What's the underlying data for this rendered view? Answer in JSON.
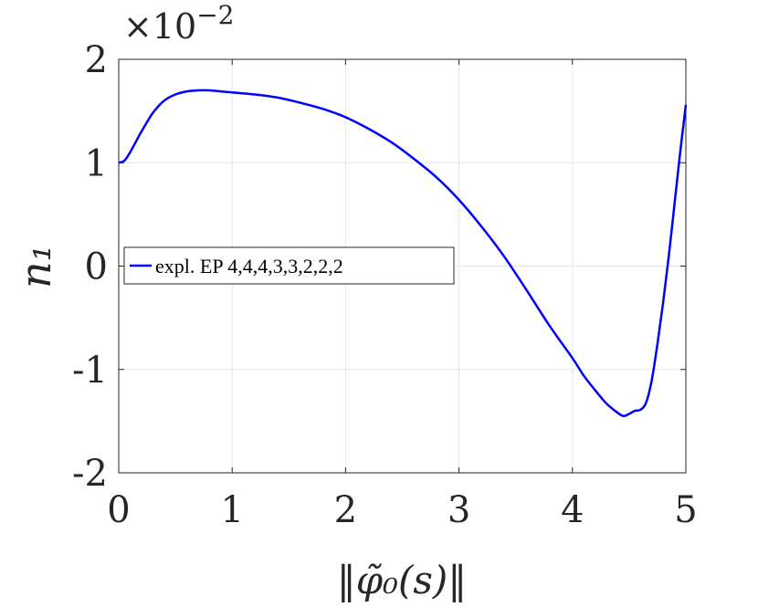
{
  "chart_data": {
    "type": "line",
    "x_exponent_label": "",
    "y_multiplier": "×10",
    "y_multiplier_exp": "−2",
    "xlabel": "‖φ̃₀(s)‖",
    "ylabel": "n₁",
    "xlim": [
      0,
      5
    ],
    "ylim": [
      -2,
      2
    ],
    "grid": true,
    "legend_position": "center-left",
    "x_ticks": [
      "0",
      "1",
      "2",
      "3",
      "4",
      "5"
    ],
    "y_ticks": [
      "-2",
      "-1",
      "0",
      "1",
      "2"
    ],
    "series": [
      {
        "name": "expl. EP 4,4,4,3,3,2,2,2",
        "color": "#0000ff",
        "x": [
          0,
          0.05,
          0.1,
          0.2,
          0.3,
          0.4,
          0.5,
          0.6,
          0.7,
          0.8,
          0.9,
          1.0,
          1.2,
          1.4,
          1.6,
          1.8,
          2.0,
          2.2,
          2.4,
          2.6,
          2.8,
          3.0,
          3.2,
          3.4,
          3.6,
          3.8,
          4.0,
          4.1,
          4.2,
          4.3,
          4.4,
          4.45,
          4.5,
          4.55,
          4.6,
          4.65,
          4.7,
          4.75,
          4.8,
          4.85,
          4.9,
          4.95,
          5.0
        ],
        "y": [
          1.0,
          1.02,
          1.1,
          1.3,
          1.48,
          1.6,
          1.66,
          1.69,
          1.7,
          1.7,
          1.69,
          1.68,
          1.66,
          1.63,
          1.58,
          1.52,
          1.44,
          1.33,
          1.2,
          1.04,
          0.86,
          0.64,
          0.38,
          0.09,
          -0.24,
          -0.58,
          -0.89,
          -1.06,
          -1.2,
          -1.33,
          -1.42,
          -1.45,
          -1.43,
          -1.4,
          -1.39,
          -1.32,
          -1.1,
          -0.75,
          -0.35,
          0.1,
          0.6,
          1.1,
          1.56
        ]
      }
    ]
  }
}
